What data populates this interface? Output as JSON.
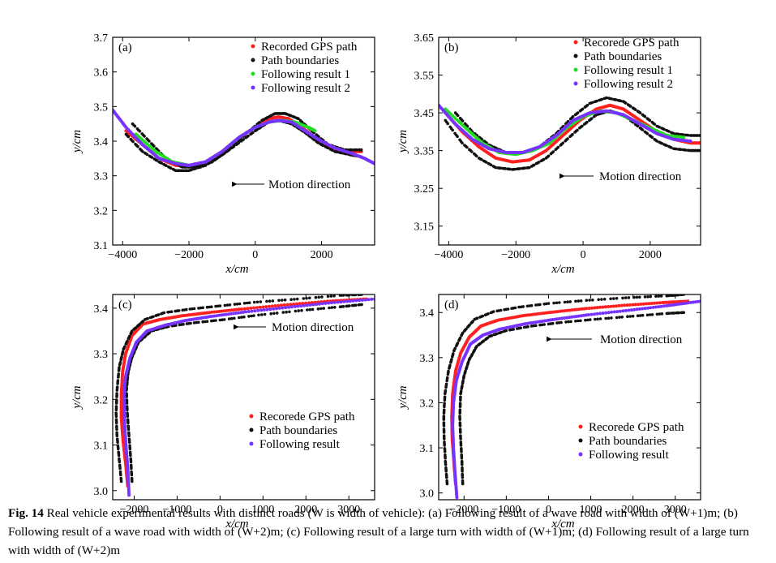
{
  "figure": {
    "caption": {
      "label": "Fig. 14",
      "text": " Real vehicle experimental results with distinct roads (W is width of vehicle): (a) Following result of a wave road with width of (W+1)m; (b) Following result of a wave road with width of (W+2)m; (c) Following result of a large turn with width of (W+1)m; (d) Following result of a large turn with width of (W+2)m"
    }
  },
  "chart_data": [
    {
      "type": "scatter",
      "panel_label": "(a)",
      "annotation": "Motion direction",
      "xlabel": "x/cm",
      "ylabel": "y/cm",
      "xlim": [
        -4300,
        3600
      ],
      "ylim": [
        3.1,
        3.7
      ],
      "xticks": [
        -4000,
        -2000,
        0,
        2000
      ],
      "xtick_labels": [
        "−4000",
        "−2000",
        "0",
        "2000"
      ],
      "yticks": [
        3.1,
        3.2,
        3.3,
        3.4,
        3.5,
        3.6,
        3.7
      ],
      "ytick_labels": [
        "3.1",
        "3.2",
        "3.3",
        "3.4",
        "3.5",
        "3.6",
        "3.7"
      ],
      "legend_position": "top-right",
      "series": [
        {
          "name": "Recorded GPS path",
          "color": "#ff2020",
          "x": [
            -3900,
            -3400,
            -2900,
            -2400,
            -2000,
            -1500,
            -1000,
            -500,
            0,
            400,
            700,
            1000,
            1400,
            1800,
            2300,
            2800,
            3200
          ],
          "y": [
            3.43,
            3.39,
            3.35,
            3.33,
            3.33,
            3.34,
            3.37,
            3.41,
            3.44,
            3.465,
            3.47,
            3.465,
            3.44,
            3.41,
            3.38,
            3.37,
            3.37
          ]
        },
        {
          "name": "Path boundaries",
          "color": "#111111",
          "x": [
            -3700,
            -3200,
            -2700,
            -2200,
            -1800,
            -1300,
            -800,
            -300,
            200,
            600,
            900,
            1300,
            1700,
            2200,
            2700,
            3200
          ],
          "y": [
            3.45,
            3.4,
            3.35,
            3.325,
            3.325,
            3.34,
            3.375,
            3.42,
            3.46,
            3.48,
            3.48,
            3.465,
            3.43,
            3.39,
            3.375,
            3.375
          ]
        },
        {
          "name": "Path boundaries",
          "color": "#111111",
          "x": [
            -3900,
            -3400,
            -2900,
            -2400,
            -2000,
            -1500,
            -1000,
            -500,
            0,
            400,
            700,
            1100,
            1500,
            1900,
            2400,
            2900,
            3200
          ],
          "y": [
            3.42,
            3.37,
            3.34,
            3.315,
            3.315,
            3.33,
            3.36,
            3.395,
            3.43,
            3.455,
            3.46,
            3.45,
            3.425,
            3.395,
            3.37,
            3.36,
            3.355
          ]
        },
        {
          "name": "Following result 1",
          "color": "#22dd22",
          "x": [
            -3600,
            -3000,
            -2500,
            -2000,
            -1500,
            -1000,
            -500,
            0,
            400,
            800,
            1200,
            1600,
            1800
          ],
          "y": [
            3.42,
            3.37,
            3.34,
            3.33,
            3.34,
            3.37,
            3.41,
            3.44,
            3.455,
            3.46,
            3.455,
            3.44,
            3.43
          ]
        },
        {
          "name": "Following result 2",
          "color": "#7733ff",
          "x": [
            -4300,
            -3900,
            -3400,
            -2900,
            -2400,
            -2000,
            -1500,
            -1000,
            -500,
            0,
            400,
            700,
            1100,
            1500,
            1900,
            2400,
            2900,
            3300,
            3600
          ],
          "y": [
            3.49,
            3.44,
            3.39,
            3.35,
            3.335,
            3.33,
            3.34,
            3.37,
            3.41,
            3.44,
            3.455,
            3.46,
            3.455,
            3.43,
            3.405,
            3.38,
            3.365,
            3.35,
            3.335
          ]
        }
      ]
    },
    {
      "type": "scatter",
      "panel_label": "(b)",
      "annotation": "Motion direction",
      "xlabel": "x/cm",
      "ylabel": "y/cm",
      "xlim": [
        -4300,
        3500
      ],
      "ylim": [
        3.1,
        3.65
      ],
      "xticks": [
        -4000,
        -2000,
        0,
        2000
      ],
      "xtick_labels": [
        "−4000",
        "−2000",
        "0",
        "2000"
      ],
      "yticks": [
        3.15,
        3.25,
        3.35,
        3.45,
        3.55,
        3.65
      ],
      "ytick_labels": [
        "3.15",
        "3.25",
        "3.35",
        "3.45",
        "3.55",
        "3.65"
      ],
      "legend_position": "top-right",
      "series": [
        {
          "name": "Recorede GPS path",
          "color": "#ff2020",
          "x": [
            -4100,
            -3600,
            -3100,
            -2600,
            -2100,
            -1600,
            -1100,
            -600,
            -100,
            400,
            800,
            1200,
            1700,
            2200,
            2700,
            3200,
            3500
          ],
          "y": [
            3.45,
            3.4,
            3.36,
            3.33,
            3.32,
            3.325,
            3.35,
            3.39,
            3.43,
            3.46,
            3.47,
            3.46,
            3.43,
            3.4,
            3.38,
            3.37,
            3.37
          ]
        },
        {
          "name": "Path boundaries",
          "color": "#111111",
          "x": [
            -3800,
            -3300,
            -2800,
            -2300,
            -1800,
            -1300,
            -800,
            -300,
            200,
            700,
            1200,
            1700,
            2200,
            2700,
            3200,
            3500
          ],
          "y": [
            3.45,
            3.4,
            3.365,
            3.345,
            3.345,
            3.36,
            3.395,
            3.44,
            3.475,
            3.49,
            3.48,
            3.45,
            3.415,
            3.395,
            3.39,
            3.39
          ]
        },
        {
          "name": "Path boundaries",
          "color": "#111111",
          "x": [
            -4100,
            -3600,
            -3100,
            -2600,
            -2100,
            -1600,
            -1100,
            -600,
            -100,
            400,
            800,
            1200,
            1700,
            2200,
            2700,
            3200,
            3500
          ],
          "y": [
            3.43,
            3.37,
            3.33,
            3.305,
            3.3,
            3.305,
            3.33,
            3.37,
            3.41,
            3.445,
            3.455,
            3.445,
            3.41,
            3.375,
            3.355,
            3.35,
            3.35
          ]
        },
        {
          "name": "Following result 1",
          "color": "#22dd22",
          "x": [
            -4100,
            -3500,
            -3000,
            -2500,
            -2000,
            -1500,
            -1000,
            -500,
            0,
            500,
            1000,
            1500,
            2000,
            2500,
            3000
          ],
          "y": [
            3.46,
            3.41,
            3.37,
            3.345,
            3.34,
            3.35,
            3.37,
            3.41,
            3.44,
            3.455,
            3.45,
            3.43,
            3.41,
            3.39,
            3.385
          ]
        },
        {
          "name": "Following result 2",
          "color": "#7733ff",
          "x": [
            -4300,
            -3800,
            -3300,
            -2800,
            -2300,
            -1800,
            -1300,
            -800,
            -300,
            200,
            700,
            1200,
            1700,
            2200,
            2700,
            3200
          ],
          "y": [
            3.47,
            3.42,
            3.38,
            3.355,
            3.345,
            3.345,
            3.36,
            3.39,
            3.43,
            3.45,
            3.455,
            3.445,
            3.42,
            3.395,
            3.38,
            3.375
          ]
        }
      ]
    },
    {
      "type": "scatter",
      "panel_label": "(c)",
      "annotation": "Motion direction",
      "xlabel": "x/cm",
      "ylabel": "y/cm",
      "xlim": [
        -2500,
        3600
      ],
      "ylim": [
        2.98,
        3.43
      ],
      "xticks": [
        -2000,
        -1000,
        0,
        1000,
        2000,
        3000
      ],
      "xtick_labels": [
        "−2000",
        "−1000",
        "0",
        "1000",
        "2000",
        "3000"
      ],
      "yticks": [
        3.0,
        3.1,
        3.2,
        3.3,
        3.4
      ],
      "ytick_labels": [
        "3.0",
        "3.1",
        "3.2",
        "3.3",
        "3.4"
      ],
      "legend_position": "bottom-right",
      "series": [
        {
          "name": "Recorede GPS path",
          "color": "#ff2020",
          "x": [
            -2150,
            -2200,
            -2260,
            -2300,
            -2300,
            -2270,
            -2200,
            -2050,
            -1800,
            -1400,
            -900,
            -300,
            500,
            1500,
            2500,
            3400
          ],
          "y": [
            3.01,
            3.06,
            3.11,
            3.16,
            3.21,
            3.26,
            3.3,
            3.34,
            3.365,
            3.375,
            3.383,
            3.39,
            3.398,
            3.407,
            3.415,
            3.42
          ]
        },
        {
          "name": "Path boundaries",
          "color": "#111111",
          "x": [
            -2300,
            -2350,
            -2400,
            -2420,
            -2400,
            -2350,
            -2250,
            -2050,
            -1750,
            -1300,
            -700,
            0,
            800,
            1800,
            2800,
            3300
          ],
          "y": [
            3.02,
            3.07,
            3.12,
            3.17,
            3.22,
            3.27,
            3.31,
            3.35,
            3.375,
            3.39,
            3.398,
            3.405,
            3.413,
            3.42,
            3.428,
            3.43
          ]
        },
        {
          "name": "Path boundaries",
          "color": "#111111",
          "x": [
            -2050,
            -2080,
            -2120,
            -2160,
            -2180,
            -2140,
            -2060,
            -1900,
            -1600,
            -1200,
            -600,
            100,
            900,
            1900,
            2800,
            3300
          ],
          "y": [
            3.02,
            3.07,
            3.12,
            3.17,
            3.22,
            3.26,
            3.29,
            3.325,
            3.35,
            3.36,
            3.368,
            3.375,
            3.385,
            3.395,
            3.403,
            3.408
          ]
        },
        {
          "name": "Following result",
          "color": "#7733ff",
          "x": [
            -2120,
            -2150,
            -2200,
            -2230,
            -2240,
            -2200,
            -2100,
            -1950,
            -1700,
            -1300,
            -800,
            -200,
            600,
            1600,
            2600,
            3600
          ],
          "y": [
            2.99,
            3.05,
            3.11,
            3.16,
            3.21,
            3.25,
            3.29,
            3.325,
            3.35,
            3.362,
            3.373,
            3.382,
            3.392,
            3.402,
            3.412,
            3.42
          ]
        }
      ]
    },
    {
      "type": "scatter",
      "panel_label": "(d)",
      "annotation": "Motion direction",
      "xlabel": "x/cm",
      "ylabel": "y/cm",
      "xlim": [
        -2600,
        3600
      ],
      "ylim": [
        2.985,
        3.44
      ],
      "xticks": [
        -2000,
        -1000,
        0,
        1000,
        2000,
        3000
      ],
      "xtick_labels": [
        "−2000",
        "−1000",
        "0",
        "1000",
        "2000",
        "3000"
      ],
      "yticks": [
        3.0,
        3.1,
        3.2,
        3.3,
        3.4
      ],
      "ytick_labels": [
        "3.0",
        "3.1",
        "3.2",
        "3.3",
        "3.4"
      ],
      "legend_position": "bottom-right",
      "series": [
        {
          "name": "Recorede GPS path",
          "color": "#ff2020",
          "x": [
            -2200,
            -2240,
            -2280,
            -2290,
            -2270,
            -2200,
            -2080,
            -1880,
            -1600,
            -1200,
            -600,
            100,
            900,
            1800,
            2700,
            3300
          ],
          "y": [
            3.02,
            3.07,
            3.12,
            3.17,
            3.22,
            3.27,
            3.31,
            3.345,
            3.37,
            3.383,
            3.393,
            3.401,
            3.409,
            3.416,
            3.422,
            3.425
          ]
        },
        {
          "name": "Path boundaries",
          "color": "#111111",
          "x": [
            -2400,
            -2440,
            -2470,
            -2480,
            -2450,
            -2370,
            -2240,
            -2030,
            -1750,
            -1300,
            -700,
            0,
            900,
            1900,
            2800,
            3200
          ],
          "y": [
            3.02,
            3.07,
            3.12,
            3.17,
            3.22,
            3.27,
            3.315,
            3.355,
            3.385,
            3.402,
            3.412,
            3.42,
            3.427,
            3.433,
            3.437,
            3.44
          ]
        },
        {
          "name": "Path boundaries",
          "color": "#111111",
          "x": [
            -2030,
            -2050,
            -2080,
            -2100,
            -2080,
            -2000,
            -1880,
            -1700,
            -1400,
            -1000,
            -400,
            300,
            1100,
            2000,
            2800,
            3200
          ],
          "y": [
            3.02,
            3.07,
            3.12,
            3.17,
            3.22,
            3.26,
            3.295,
            3.325,
            3.347,
            3.36,
            3.37,
            3.378,
            3.385,
            3.392,
            3.398,
            3.4
          ]
        },
        {
          "name": "Following result",
          "color": "#7733ff",
          "x": [
            -2170,
            -2210,
            -2250,
            -2270,
            -2250,
            -2180,
            -2050,
            -1850,
            -1550,
            -1150,
            -550,
            150,
            950,
            1900,
            2800,
            3600
          ],
          "y": [
            2.99,
            3.04,
            3.1,
            3.15,
            3.2,
            3.25,
            3.29,
            3.33,
            3.35,
            3.363,
            3.375,
            3.385,
            3.395,
            3.405,
            3.415,
            3.425
          ]
        }
      ]
    }
  ]
}
